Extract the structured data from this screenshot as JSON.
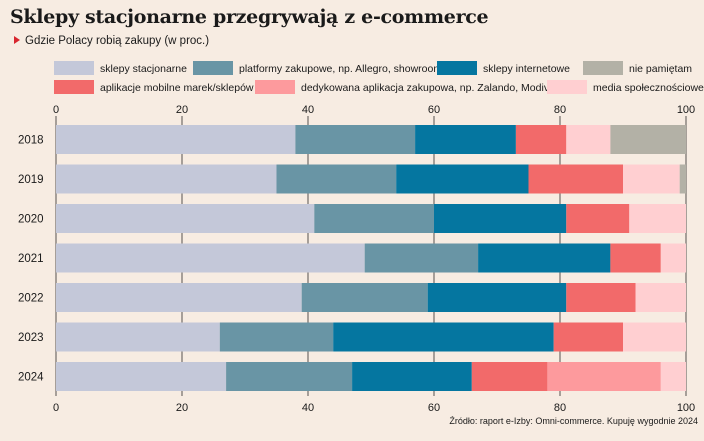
{
  "header": {
    "title": "Sklepy stacjonarne przegrywają z e-commerce",
    "subtitle": "Gdzie Polacy robią zakupy (w proc.)"
  },
  "footer": {
    "source": "Źródło: raport e-Izby: Omni-commerce. Kupuję wygodnie 2024"
  },
  "chart_data": {
    "type": "bar",
    "orientation": "horizontal",
    "stacked": true,
    "categories": [
      "2018",
      "2019",
      "2020",
      "2021",
      "2022",
      "2023",
      "2024"
    ],
    "xlim": [
      0,
      100
    ],
    "xticks": [
      0,
      20,
      40,
      60,
      80,
      100
    ],
    "grid": true,
    "legend_position": "top",
    "series": [
      {
        "name": "sklepy stacjonarne",
        "color": "#c4c8d9",
        "values": [
          38,
          35,
          41,
          49,
          39,
          26,
          27
        ]
      },
      {
        "name": "platformy zakupowe, np. Allegro, showroom",
        "color": "#6995a5",
        "values": [
          19,
          19,
          19,
          18,
          20,
          18,
          20
        ]
      },
      {
        "name": "sklepy internetowe",
        "color": "#0576a0",
        "values": [
          16,
          21,
          21,
          21,
          22,
          35,
          19
        ]
      },
      {
        "name": "aplikacje mobilne marek/sklepów",
        "color": "#f26a6a",
        "values": [
          8,
          15,
          10,
          8,
          11,
          11,
          12
        ]
      },
      {
        "name": "dedykowana aplikacja zakupowa, np. Zalando, Modivo",
        "color": "#fd9a9d",
        "values": [
          0,
          0,
          0,
          0,
          0,
          0,
          18
        ]
      },
      {
        "name": "media społecznościowe",
        "color": "#ffcfd1",
        "values": [
          7,
          9,
          9,
          4,
          8,
          10,
          4
        ]
      },
      {
        "name": "nie pamiętam",
        "color": "#b3b1a6",
        "values": [
          12,
          1,
          0,
          0,
          0,
          0,
          0
        ]
      }
    ],
    "legend_rows": [
      [
        0,
        1,
        2,
        6
      ],
      [
        3,
        4,
        5
      ]
    ]
  }
}
